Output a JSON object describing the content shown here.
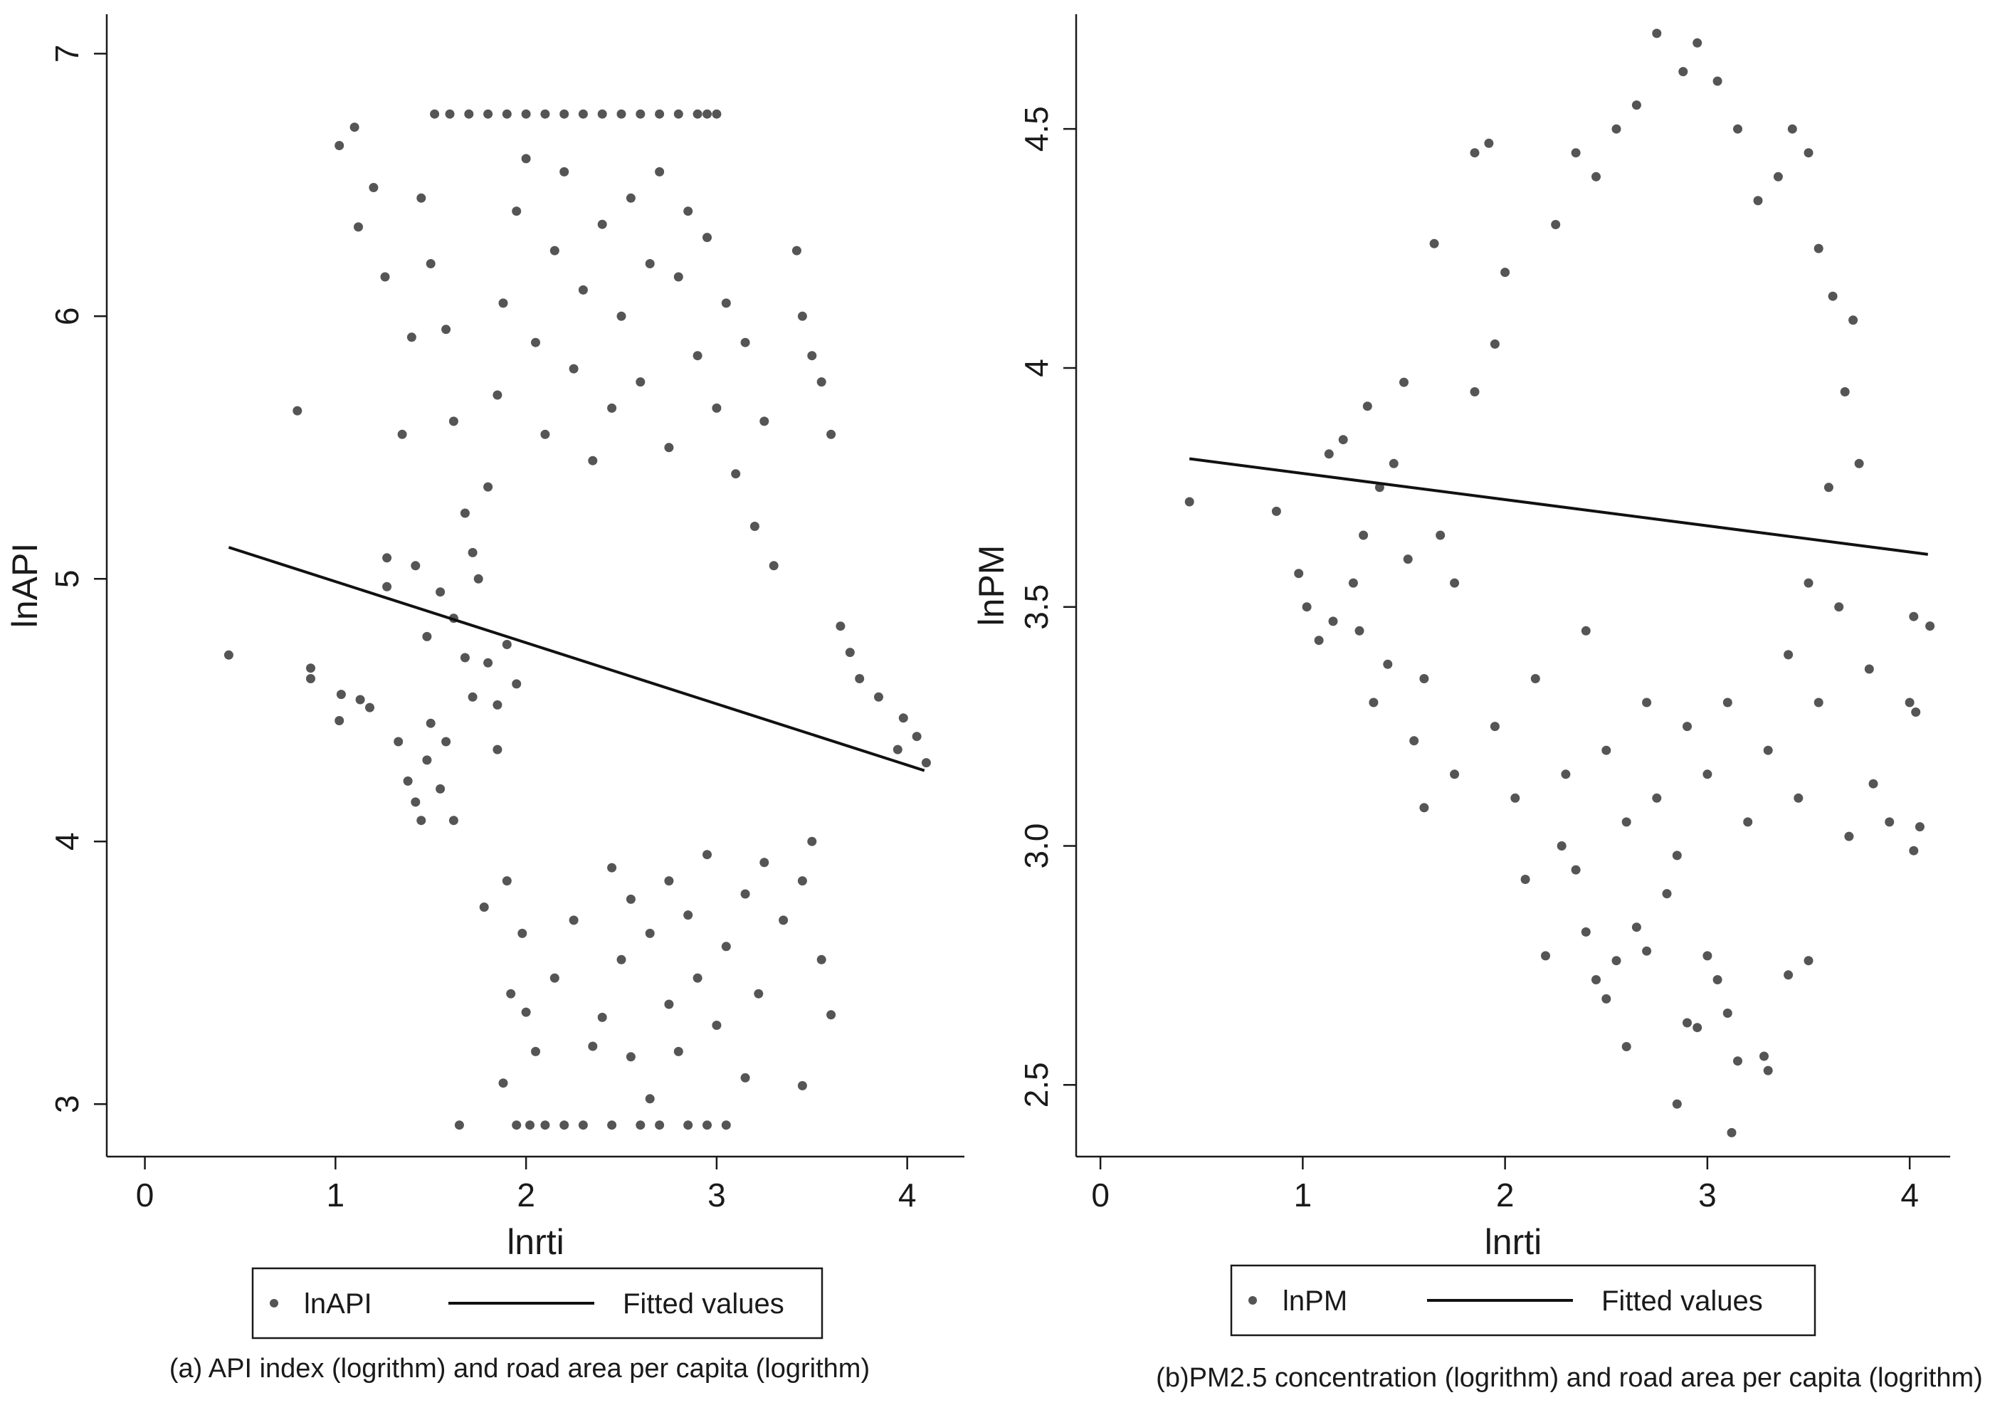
{
  "chart_data": [
    {
      "type": "scatter",
      "panel": "a",
      "caption": "(a) API index (logrithm) and road area per capita (logrithm)",
      "xlabel": "lnrti",
      "ylabel": "lnAPI",
      "xlim": [
        -0.2,
        4.3
      ],
      "ylim": [
        2.8,
        7.15
      ],
      "xticks": [
        0,
        1,
        2,
        3,
        4
      ],
      "xtick_labels": [
        "0",
        "1",
        "2",
        "3",
        "4"
      ],
      "yticks": [
        3,
        4,
        5,
        6,
        7
      ],
      "ytick_labels": [
        "3",
        "4",
        "5",
        "6",
        "7"
      ],
      "grid": false,
      "legend": {
        "placement": "bottom",
        "entries": [
          "lnAPI",
          "Fitted values"
        ]
      },
      "series": [
        {
          "name": "lnAPI",
          "kind": "scatter",
          "color": "#555555",
          "points": [
            [
              0.44,
              4.71
            ],
            [
              0.8,
              5.64
            ],
            [
              0.87,
              4.62
            ],
            [
              0.87,
              4.66
            ],
            [
              1.02,
              4.46
            ],
            [
              1.03,
              4.56
            ],
            [
              1.13,
              4.54
            ],
            [
              1.18,
              4.51
            ],
            [
              1.02,
              6.65
            ],
            [
              1.1,
              6.72
            ],
            [
              1.2,
              6.49
            ],
            [
              1.12,
              6.34
            ],
            [
              1.26,
              6.15
            ],
            [
              1.27,
              5.08
            ],
            [
              1.27,
              4.97
            ],
            [
              1.33,
              4.38
            ],
            [
              1.38,
              4.23
            ],
            [
              1.42,
              4.15
            ],
            [
              1.45,
              4.08
            ],
            [
              1.48,
              4.31
            ],
            [
              1.5,
              4.45
            ],
            [
              1.55,
              4.2
            ],
            [
              1.58,
              4.38
            ],
            [
              1.62,
              4.08
            ],
            [
              1.65,
              2.92
            ],
            [
              1.78,
              3.75
            ],
            [
              1.85,
              4.35
            ],
            [
              1.88,
              3.08
            ],
            [
              1.9,
              3.85
            ],
            [
              1.92,
              3.42
            ],
            [
              1.95,
              2.92
            ],
            [
              1.98,
              3.65
            ],
            [
              2.0,
              3.35
            ],
            [
              2.02,
              2.92
            ],
            [
              2.05,
              3.2
            ],
            [
              2.1,
              2.92
            ],
            [
              2.15,
              3.48
            ],
            [
              2.2,
              2.92
            ],
            [
              2.25,
              3.7
            ],
            [
              2.3,
              2.92
            ],
            [
              2.35,
              3.22
            ],
            [
              2.4,
              3.33
            ],
            [
              2.45,
              2.92
            ],
            [
              2.5,
              3.55
            ],
            [
              2.55,
              3.18
            ],
            [
              2.6,
              2.92
            ],
            [
              2.65,
              3.02
            ],
            [
              2.7,
              2.92
            ],
            [
              2.75,
              3.38
            ],
            [
              2.8,
              3.2
            ],
            [
              2.85,
              2.92
            ],
            [
              2.9,
              3.48
            ],
            [
              2.95,
              2.92
            ],
            [
              3.0,
              3.3
            ],
            [
              3.05,
              2.92
            ],
            [
              3.15,
              3.1
            ],
            [
              3.22,
              3.42
            ],
            [
              3.45,
              3.07
            ],
            [
              3.55,
              3.55
            ],
            [
              3.6,
              3.34
            ],
            [
              3.75,
              4.62
            ],
            [
              3.85,
              4.55
            ],
            [
              3.95,
              4.35
            ],
            [
              4.05,
              4.4
            ],
            [
              4.1,
              4.3
            ],
            [
              3.98,
              4.47
            ],
            [
              3.7,
              4.72
            ],
            [
              3.65,
              4.82
            ],
            [
              3.6,
              5.55
            ],
            [
              3.55,
              5.75
            ],
            [
              3.5,
              5.85
            ],
            [
              3.45,
              6.0
            ],
            [
              3.42,
              6.25
            ],
            [
              1.52,
              6.77
            ],
            [
              1.6,
              6.77
            ],
            [
              1.7,
              6.77
            ],
            [
              1.8,
              6.77
            ],
            [
              1.9,
              6.77
            ],
            [
              2.0,
              6.77
            ],
            [
              2.1,
              6.77
            ],
            [
              2.2,
              6.77
            ],
            [
              2.3,
              6.77
            ],
            [
              2.4,
              6.77
            ],
            [
              2.5,
              6.77
            ],
            [
              2.6,
              6.77
            ],
            [
              2.7,
              6.77
            ],
            [
              2.8,
              6.77
            ],
            [
              2.9,
              6.77
            ],
            [
              2.95,
              6.77
            ],
            [
              3.0,
              6.77
            ],
            [
              1.45,
              6.45
            ],
            [
              1.5,
              6.2
            ],
            [
              1.58,
              5.95
            ],
            [
              1.62,
              5.6
            ],
            [
              1.68,
              5.25
            ],
            [
              1.72,
              5.1
            ],
            [
              1.75,
              5.0
            ],
            [
              1.8,
              5.35
            ],
            [
              1.85,
              5.7
            ],
            [
              1.88,
              6.05
            ],
            [
              1.95,
              6.4
            ],
            [
              2.0,
              6.6
            ],
            [
              2.05,
              5.9
            ],
            [
              2.1,
              5.55
            ],
            [
              2.15,
              6.25
            ],
            [
              2.2,
              6.55
            ],
            [
              2.25,
              5.8
            ],
            [
              2.3,
              6.1
            ],
            [
              2.35,
              5.45
            ],
            [
              2.4,
              6.35
            ],
            [
              2.45,
              5.65
            ],
            [
              2.5,
              6.0
            ],
            [
              2.55,
              6.45
            ],
            [
              2.6,
              5.75
            ],
            [
              2.65,
              6.2
            ],
            [
              2.7,
              6.55
            ],
            [
              2.75,
              5.5
            ],
            [
              2.8,
              6.15
            ],
            [
              2.85,
              6.4
            ],
            [
              2.9,
              5.85
            ],
            [
              2.95,
              6.3
            ],
            [
              3.0,
              5.65
            ],
            [
              3.05,
              6.05
            ],
            [
              3.1,
              5.4
            ],
            [
              3.15,
              5.9
            ],
            [
              3.2,
              5.2
            ],
            [
              3.25,
              5.6
            ],
            [
              3.3,
              5.05
            ],
            [
              1.35,
              5.55
            ],
            [
              1.4,
              5.92
            ],
            [
              1.42,
              5.05
            ],
            [
              1.48,
              4.78
            ],
            [
              1.55,
              4.95
            ],
            [
              1.62,
              4.85
            ],
            [
              1.68,
              4.7
            ],
            [
              1.72,
              4.55
            ],
            [
              1.8,
              4.68
            ],
            [
              1.85,
              4.52
            ],
            [
              1.9,
              4.75
            ],
            [
              1.95,
              4.6
            ],
            [
              2.45,
              3.9
            ],
            [
              2.55,
              3.78
            ],
            [
              2.65,
              3.65
            ],
            [
              2.75,
              3.85
            ],
            [
              2.85,
              3.72
            ],
            [
              2.95,
              3.95
            ],
            [
              3.05,
              3.6
            ],
            [
              3.15,
              3.8
            ],
            [
              3.25,
              3.92
            ],
            [
              3.35,
              3.7
            ],
            [
              3.45,
              3.85
            ],
            [
              3.5,
              4.0
            ]
          ]
        },
        {
          "name": "Fitted values",
          "kind": "line",
          "color": "#111111",
          "points": [
            [
              0.44,
              5.12
            ],
            [
              4.09,
              4.27
            ]
          ]
        }
      ]
    },
    {
      "type": "scatter",
      "panel": "b",
      "caption": "(b)PM2.5 concentration (logrithm) and road area per capita (logrithm)",
      "xlabel": "lnrti",
      "ylabel": "lnPM",
      "xlim": [
        -0.12,
        4.2
      ],
      "ylim": [
        2.35,
        4.74
      ],
      "xticks": [
        0,
        1,
        2,
        3,
        4
      ],
      "xtick_labels": [
        "0",
        "1",
        "2",
        "3",
        "4"
      ],
      "yticks": [
        2.5,
        3,
        3.5,
        4,
        4.5
      ],
      "ytick_labels": [
        "2.5",
        "3.0",
        "3.5",
        "4",
        "4.5"
      ],
      "grid": false,
      "legend": {
        "placement": "bottom",
        "entries": [
          "lnPM",
          "Fitted values"
        ]
      },
      "series": [
        {
          "name": "lnPM",
          "kind": "scatter",
          "color": "#555555",
          "points": [
            [
              0.44,
              3.72
            ],
            [
              0.87,
              3.7
            ],
            [
              0.98,
              3.57
            ],
            [
              1.02,
              3.5
            ],
            [
              1.08,
              3.43
            ],
            [
              1.13,
              3.82
            ],
            [
              1.15,
              3.47
            ],
            [
              1.2,
              3.85
            ],
            [
              1.28,
              3.45
            ],
            [
              1.32,
              3.92
            ],
            [
              1.38,
              3.75
            ],
            [
              1.42,
              3.38
            ],
            [
              1.5,
              3.97
            ],
            [
              1.55,
              3.22
            ],
            [
              1.6,
              3.08
            ],
            [
              1.65,
              4.26
            ],
            [
              1.75,
              3.15
            ],
            [
              1.85,
              4.45
            ],
            [
              1.92,
              4.47
            ],
            [
              2.1,
              2.93
            ],
            [
              2.2,
              2.77
            ],
            [
              2.28,
              3.0
            ],
            [
              2.35,
              2.95
            ],
            [
              2.4,
              2.82
            ],
            [
              2.45,
              2.72
            ],
            [
              2.5,
              2.68
            ],
            [
              2.55,
              2.76
            ],
            [
              2.6,
              2.58
            ],
            [
              2.65,
              2.83
            ],
            [
              2.7,
              2.78
            ],
            [
              2.8,
              2.9
            ],
            [
              2.85,
              2.46
            ],
            [
              2.9,
              2.63
            ],
            [
              2.95,
              2.62
            ],
            [
              3.0,
              2.77
            ],
            [
              3.05,
              2.72
            ],
            [
              3.1,
              2.65
            ],
            [
              3.12,
              2.4
            ],
            [
              3.15,
              2.55
            ],
            [
              3.28,
              2.56
            ],
            [
              3.3,
              2.53
            ],
            [
              3.4,
              2.73
            ],
            [
              3.5,
              2.76
            ],
            [
              3.7,
              3.02
            ],
            [
              3.8,
              3.37
            ],
            [
              3.82,
              3.13
            ],
            [
              3.9,
              3.05
            ],
            [
              4.0,
              3.3
            ],
            [
              4.02,
              2.99
            ],
            [
              4.03,
              3.28
            ],
            [
              4.05,
              3.04
            ],
            [
              4.1,
              3.46
            ],
            [
              4.02,
              3.48
            ],
            [
              3.75,
              3.8
            ],
            [
              3.72,
              4.1
            ],
            [
              3.68,
              3.95
            ],
            [
              3.62,
              4.15
            ],
            [
              3.55,
              4.25
            ],
            [
              3.5,
              4.45
            ],
            [
              3.42,
              4.5
            ],
            [
              3.35,
              4.4
            ],
            [
              3.25,
              4.35
            ],
            [
              3.15,
              4.5
            ],
            [
              3.05,
              4.6
            ],
            [
              2.95,
              4.68
            ],
            [
              2.88,
              4.62
            ],
            [
              2.75,
              4.7
            ],
            [
              2.65,
              4.55
            ],
            [
              2.55,
              4.5
            ],
            [
              2.45,
              4.4
            ],
            [
              2.35,
              4.45
            ],
            [
              2.25,
              4.3
            ],
            [
              2.0,
              4.2
            ],
            [
              1.95,
              4.05
            ],
            [
              1.85,
              3.95
            ],
            [
              1.75,
              3.55
            ],
            [
              1.68,
              3.65
            ],
            [
              1.6,
              3.35
            ],
            [
              1.52,
              3.6
            ],
            [
              1.45,
              3.8
            ],
            [
              1.35,
              3.3
            ],
            [
              1.3,
              3.65
            ],
            [
              1.25,
              3.55
            ],
            [
              1.95,
              3.25
            ],
            [
              2.05,
              3.1
            ],
            [
              2.15,
              3.35
            ],
            [
              2.3,
              3.15
            ],
            [
              2.4,
              3.45
            ],
            [
              2.5,
              3.2
            ],
            [
              2.6,
              3.05
            ],
            [
              2.7,
              3.3
            ],
            [
              2.75,
              3.1
            ],
            [
              2.85,
              2.98
            ],
            [
              2.9,
              3.25
            ],
            [
              3.0,
              3.15
            ],
            [
              3.1,
              3.3
            ],
            [
              3.2,
              3.05
            ],
            [
              3.3,
              3.2
            ],
            [
              3.4,
              3.4
            ],
            [
              3.45,
              3.1
            ],
            [
              3.5,
              3.55
            ],
            [
              3.55,
              3.3
            ],
            [
              3.6,
              3.75
            ],
            [
              3.65,
              3.5
            ]
          ]
        },
        {
          "name": "Fitted values",
          "kind": "line",
          "color": "#111111",
          "points": [
            [
              0.44,
              3.81
            ],
            [
              4.09,
              3.61
            ]
          ]
        }
      ]
    }
  ]
}
